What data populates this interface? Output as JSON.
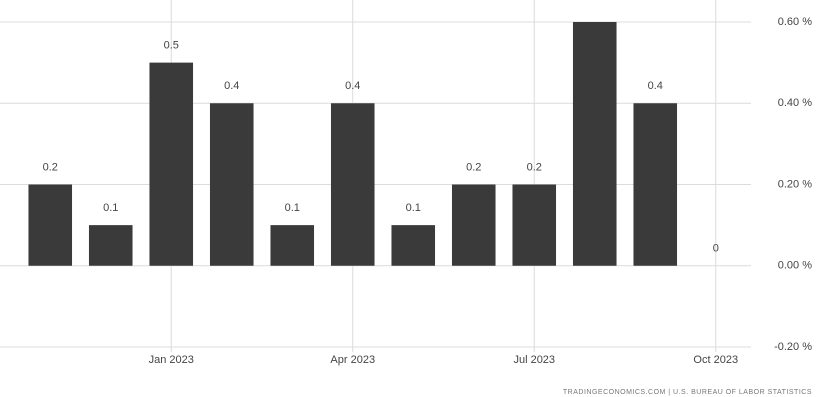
{
  "chart_data": {
    "type": "bar",
    "categories": [
      null,
      null,
      "Jan 2023",
      null,
      null,
      "Apr 2023",
      null,
      null,
      "Jul 2023",
      null,
      null,
      "Oct 2023"
    ],
    "values": [
      0.2,
      0.1,
      0.5,
      0.4,
      0.1,
      0.4,
      0.1,
      0.2,
      0.2,
      0.6,
      0.4,
      0
    ],
    "value_labels": [
      "0.2",
      "0.1",
      "0.5",
      "0.4",
      "0.1",
      "0.4",
      "0.1",
      "0.2",
      "0.2",
      null,
      "0.4",
      "0"
    ],
    "color": "#3a3a3a",
    "ylim": [
      -0.2,
      0.6
    ],
    "yticks": [
      {
        "value": -0.2,
        "label": "-0.20 %"
      },
      {
        "value": 0,
        "label": "0.00 %"
      },
      {
        "value": 0.2,
        "label": "0.20 %"
      },
      {
        "value": 0.4,
        "label": "0.40 %"
      },
      {
        "value": 0.6,
        "label": "0.60 %"
      }
    ],
    "grid": true,
    "source": "TRADINGECONOMICS.COM | U.S. BUREAU OF LABOR STATISTICS"
  }
}
